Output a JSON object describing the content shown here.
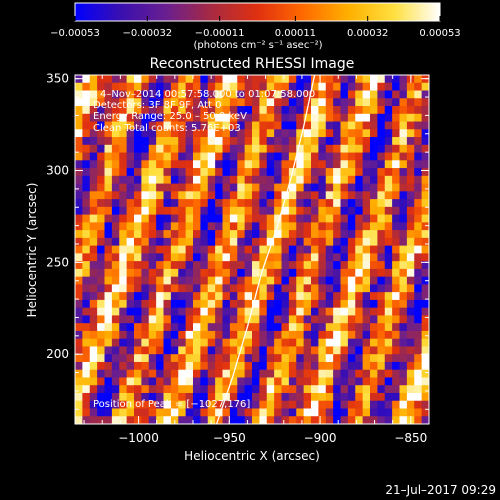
{
  "chart_data": {
    "type": "heatmap",
    "title": "Reconstructed RHESSI Image",
    "xlabel": "Heliocentric X (arcsec)",
    "ylabel": "Heliocentric Y (arcsec)",
    "xlim": [
      -1035,
      -840
    ],
    "ylim": [
      162,
      352
    ],
    "x_ticks": [
      -1000,
      -950,
      -900,
      -850
    ],
    "x_tick_labels": [
      "−1000",
      "−950",
      "−900",
      "−850"
    ],
    "y_ticks": [
      200,
      250,
      300,
      350
    ],
    "y_tick_labels": [
      "200",
      "250",
      "300",
      "350"
    ],
    "colorbar": {
      "range": [
        -0.00053,
        0.00053
      ],
      "ticks": [
        -0.00053,
        -0.00032,
        -0.00011,
        0.00011,
        0.00032,
        0.00053
      ],
      "tick_labels": [
        "−0.00053",
        "−0.00032",
        "−0.00011",
        "0.00011",
        "0.00032",
        "0.00053"
      ],
      "units": "(photons cm⁻² s⁻¹ asec⁻²)",
      "colors": [
        "#0000ff",
        "#3a0fb0",
        "#6a1f90",
        "#a82a40",
        "#e03010",
        "#ff6a00",
        "#ffb000",
        "#ffe040",
        "#ffffff"
      ]
    },
    "annotations": {
      "time": "4–Nov–2014 00:57:58.000 to 01:07:58.000",
      "detectors": "Detectors: 3F 8F 9F, Att 0",
      "energy": "Energy Range: 25.0 – 50.0 keV",
      "clean": "Clean    Total counts: 5.76E+03",
      "peak": "Position of Peak = [−1027,176]"
    },
    "limb": {
      "x": [
        -957,
        -948,
        -940,
        -932,
        -924,
        -916,
        -909,
        -903
      ],
      "y": [
        162,
        188,
        215,
        245,
        268,
        296,
        324,
        352
      ]
    },
    "pattern": {
      "nx": 48,
      "ny": 45,
      "stripe_slope": -0.3,
      "seed": 7
    },
    "grid": false
  },
  "footer": {
    "date": "21–Jul–2017 09:29"
  }
}
